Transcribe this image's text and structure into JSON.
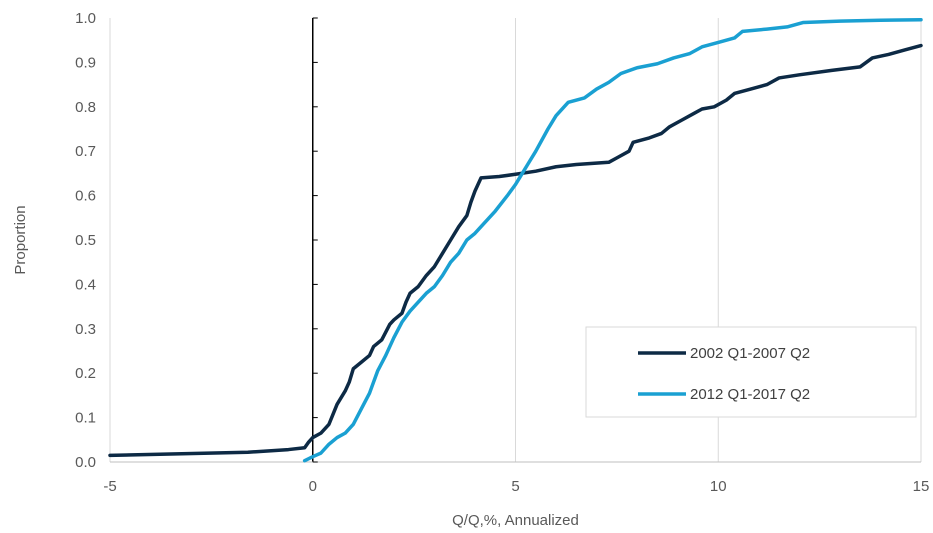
{
  "chart_data": {
    "type": "line",
    "title": "",
    "xlabel": "Q/Q,%, Annualized",
    "ylabel": "Proportion",
    "xlim": [
      -5,
      15
    ],
    "ylim": [
      0,
      1
    ],
    "x_ticks": [
      -5,
      0,
      5,
      10,
      15
    ],
    "x_tick_labels": [
      "-5",
      "0",
      "5",
      "10",
      "15"
    ],
    "y_ticks": [
      0,
      0.1,
      0.2,
      0.3,
      0.4,
      0.5,
      0.6,
      0.7,
      0.8,
      0.9,
      1.0
    ],
    "y_tick_labels": [
      "0.0",
      "0.1",
      "0.2",
      "0.3",
      "0.4",
      "0.5",
      "0.6",
      "0.7",
      "0.8",
      "0.9",
      "1.0"
    ],
    "grid": "vertical",
    "legend_position": "bottom-right",
    "series": [
      {
        "name": "2002 Q1-2007 Q2",
        "color": "#0d2a45",
        "points": [
          [
            -5,
            0.015
          ],
          [
            -3.5,
            0.018
          ],
          [
            -1.6,
            0.022
          ],
          [
            -0.6,
            0.028
          ],
          [
            -0.2,
            0.032
          ],
          [
            -0.1,
            0.045
          ],
          [
            0.0,
            0.055
          ],
          [
            0.2,
            0.065
          ],
          [
            0.4,
            0.085
          ],
          [
            0.6,
            0.13
          ],
          [
            0.8,
            0.16
          ],
          [
            0.9,
            0.18
          ],
          [
            1.0,
            0.21
          ],
          [
            1.2,
            0.225
          ],
          [
            1.4,
            0.24
          ],
          [
            1.5,
            0.26
          ],
          [
            1.7,
            0.275
          ],
          [
            1.9,
            0.31
          ],
          [
            2.0,
            0.32
          ],
          [
            2.2,
            0.335
          ],
          [
            2.3,
            0.36
          ],
          [
            2.4,
            0.38
          ],
          [
            2.6,
            0.395
          ],
          [
            2.8,
            0.42
          ],
          [
            3.0,
            0.44
          ],
          [
            3.2,
            0.47
          ],
          [
            3.4,
            0.5
          ],
          [
            3.6,
            0.53
          ],
          [
            3.8,
            0.555
          ],
          [
            3.9,
            0.585
          ],
          [
            4.0,
            0.61
          ],
          [
            4.15,
            0.64
          ],
          [
            4.6,
            0.643
          ],
          [
            5.0,
            0.648
          ],
          [
            5.5,
            0.655
          ],
          [
            6.0,
            0.665
          ],
          [
            6.5,
            0.67
          ],
          [
            7.3,
            0.675
          ],
          [
            7.5,
            0.685
          ],
          [
            7.8,
            0.7
          ],
          [
            7.9,
            0.72
          ],
          [
            8.3,
            0.73
          ],
          [
            8.6,
            0.74
          ],
          [
            8.8,
            0.755
          ],
          [
            9.1,
            0.77
          ],
          [
            9.4,
            0.785
          ],
          [
            9.6,
            0.795
          ],
          [
            9.9,
            0.8
          ],
          [
            10.2,
            0.815
          ],
          [
            10.4,
            0.83
          ],
          [
            10.8,
            0.84
          ],
          [
            11.2,
            0.85
          ],
          [
            11.5,
            0.865
          ],
          [
            12.0,
            0.872
          ],
          [
            12.8,
            0.882
          ],
          [
            13.5,
            0.89
          ],
          [
            13.8,
            0.91
          ],
          [
            14.2,
            0.918
          ],
          [
            14.6,
            0.928
          ],
          [
            15.0,
            0.938
          ]
        ]
      },
      {
        "name": "2012 Q1-2017 Q2",
        "color": "#1aa0d2",
        "points": [
          [
            -0.2,
            0.003
          ],
          [
            0.0,
            0.012
          ],
          [
            0.2,
            0.02
          ],
          [
            0.4,
            0.04
          ],
          [
            0.6,
            0.055
          ],
          [
            0.8,
            0.065
          ],
          [
            1.0,
            0.085
          ],
          [
            1.2,
            0.12
          ],
          [
            1.4,
            0.155
          ],
          [
            1.5,
            0.18
          ],
          [
            1.6,
            0.205
          ],
          [
            1.8,
            0.24
          ],
          [
            2.0,
            0.28
          ],
          [
            2.2,
            0.315
          ],
          [
            2.4,
            0.34
          ],
          [
            2.6,
            0.36
          ],
          [
            2.8,
            0.38
          ],
          [
            3.0,
            0.395
          ],
          [
            3.2,
            0.42
          ],
          [
            3.4,
            0.45
          ],
          [
            3.6,
            0.47
          ],
          [
            3.8,
            0.5
          ],
          [
            4.0,
            0.515
          ],
          [
            4.2,
            0.535
          ],
          [
            4.5,
            0.565
          ],
          [
            4.8,
            0.6
          ],
          [
            5.0,
            0.625
          ],
          [
            5.1,
            0.64
          ],
          [
            5.3,
            0.67
          ],
          [
            5.5,
            0.7
          ],
          [
            5.8,
            0.75
          ],
          [
            6.0,
            0.78
          ],
          [
            6.3,
            0.81
          ],
          [
            6.7,
            0.82
          ],
          [
            7.0,
            0.84
          ],
          [
            7.3,
            0.855
          ],
          [
            7.6,
            0.875
          ],
          [
            8.0,
            0.888
          ],
          [
            8.5,
            0.897
          ],
          [
            8.9,
            0.91
          ],
          [
            9.3,
            0.92
          ],
          [
            9.6,
            0.935
          ],
          [
            10.0,
            0.945
          ],
          [
            10.4,
            0.955
          ],
          [
            10.6,
            0.97
          ],
          [
            11.2,
            0.975
          ],
          [
            11.7,
            0.98
          ],
          [
            12.1,
            0.99
          ],
          [
            13.0,
            0.993
          ],
          [
            14.0,
            0.995
          ],
          [
            15.0,
            0.996
          ]
        ]
      }
    ]
  }
}
